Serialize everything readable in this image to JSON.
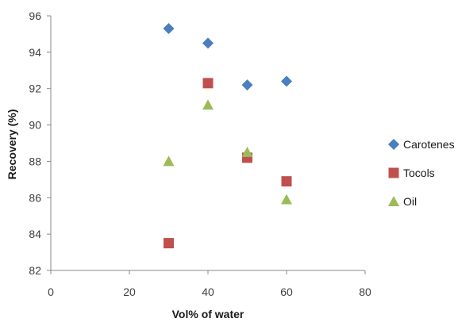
{
  "chart_data": {
    "type": "scatter",
    "title": "",
    "xlabel": "Vol% of water",
    "ylabel": "Recovery (%)",
    "xlim": [
      0,
      80
    ],
    "ylim": [
      82,
      96
    ],
    "xticks": [
      "0",
      "20",
      "40",
      "60",
      "80"
    ],
    "yticks": [
      "82",
      "84",
      "86",
      "88",
      "90",
      "92",
      "94",
      "96"
    ],
    "grid": false,
    "legend_position": "right",
    "series": [
      {
        "name": "Carotenes",
        "marker": "diamond",
        "color": "#4a7ebf",
        "points": [
          {
            "x": 30,
            "y": 95.3
          },
          {
            "x": 40,
            "y": 94.5
          },
          {
            "x": 50,
            "y": 92.2
          },
          {
            "x": 60,
            "y": 92.4
          }
        ]
      },
      {
        "name": "Tocols",
        "marker": "square",
        "color": "#c0504d",
        "points": [
          {
            "x": 30,
            "y": 83.5
          },
          {
            "x": 40,
            "y": 92.3
          },
          {
            "x": 50,
            "y": 88.2
          },
          {
            "x": 60,
            "y": 86.9
          }
        ]
      },
      {
        "name": "Oil",
        "marker": "triangle",
        "color": "#9bbb59",
        "points": [
          {
            "x": 30,
            "y": 88.0
          },
          {
            "x": 40,
            "y": 91.1
          },
          {
            "x": 50,
            "y": 88.5
          },
          {
            "x": 60,
            "y": 85.9
          }
        ]
      }
    ]
  }
}
